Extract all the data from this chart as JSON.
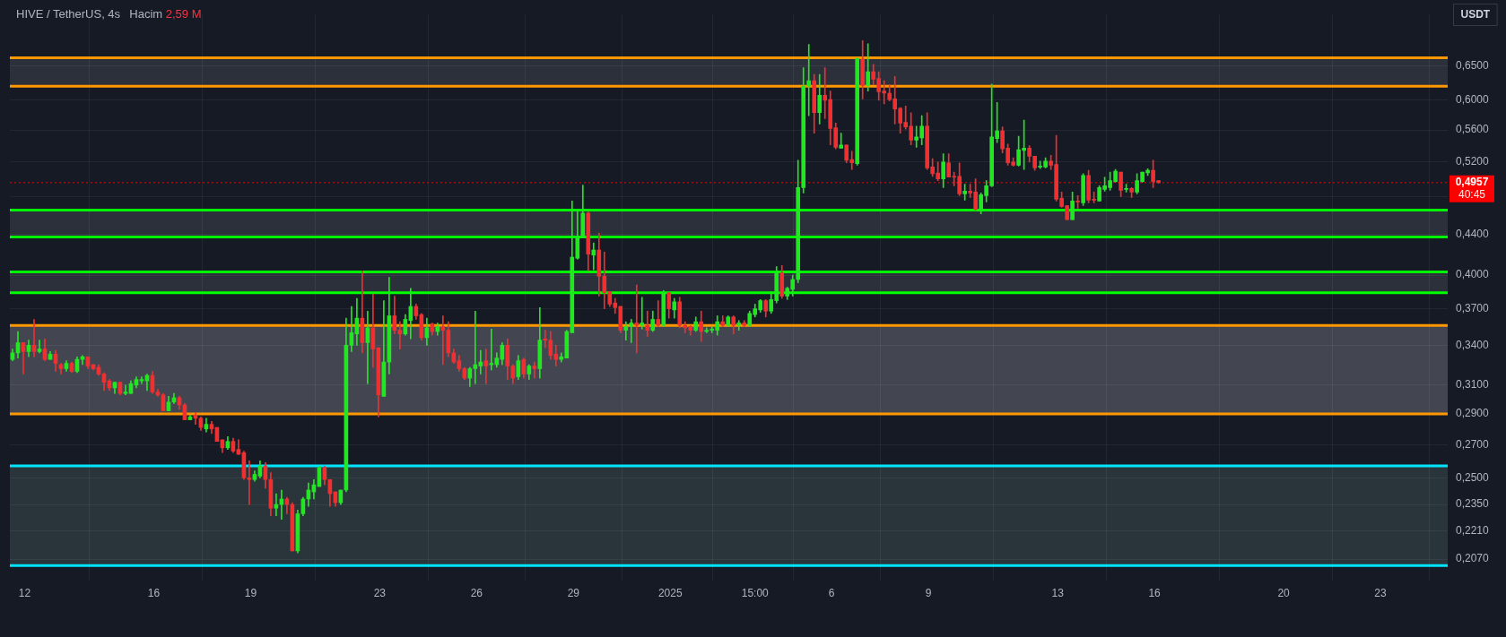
{
  "chart_data": {
    "type": "candlestick",
    "title": "HIVE / TetherUS, 4s",
    "subtitle": "Hacim 2,59 M",
    "ylabel": "USDT",
    "x": [
      "2024-12-11T15:00",
      "2024-12-11T19:00",
      "2024-12-11T23:00",
      "2024-12-12T03:00",
      "2024-12-12T07:00",
      "2024-12-12T11:00",
      "2024-12-12T15:00",
      "2024-12-12T19:00",
      "2024-12-12T23:00",
      "2024-12-13T03:00",
      "2024-12-13T07:00",
      "2024-12-13T11:00",
      "2024-12-13T15:00",
      "2024-12-13T19:00",
      "2024-12-13T23:00",
      "2024-12-14T03:00",
      "2024-12-14T07:00",
      "2024-12-14T11:00",
      "2024-12-14T15:00",
      "2024-12-14T19:00",
      "2024-12-14T23:00",
      "2024-12-15T03:00",
      "2024-12-15T07:00",
      "2024-12-15T11:00",
      "2024-12-15T15:00",
      "2024-12-15T19:00",
      "2024-12-15T23:00",
      "2024-12-16T03:00",
      "2024-12-16T07:00",
      "2024-12-16T11:00",
      "2024-12-16T15:00",
      "2024-12-16T19:00",
      "2024-12-16T23:00",
      "2024-12-17T03:00",
      "2024-12-17T07:00",
      "2024-12-17T11:00",
      "2024-12-17T15:00",
      "2024-12-17T19:00",
      "2024-12-17T23:00",
      "2024-12-18T03:00",
      "2024-12-18T07:00",
      "2024-12-18T11:00",
      "2024-12-18T15:00",
      "2024-12-18T19:00",
      "2024-12-18T23:00",
      "2024-12-19T03:00",
      "2024-12-19T07:00",
      "2024-12-19T11:00",
      "2024-12-19T15:00",
      "2024-12-19T19:00",
      "2024-12-19T23:00",
      "2024-12-20T03:00",
      "2024-12-20T07:00",
      "2024-12-20T11:00",
      "2024-12-20T15:00",
      "2024-12-20T19:00",
      "2024-12-20T23:00",
      "2024-12-21T03:00",
      "2024-12-21T07:00",
      "2024-12-21T11:00",
      "2024-12-21T15:00",
      "2024-12-21T19:00",
      "2024-12-21T23:00",
      "2024-12-22T03:00",
      "2024-12-22T07:00",
      "2024-12-22T11:00",
      "2024-12-22T15:00",
      "2024-12-22T19:00",
      "2024-12-22T23:00",
      "2024-12-23T03:00",
      "2024-12-23T07:00",
      "2024-12-23T11:00",
      "2024-12-23T15:00",
      "2024-12-23T19:00",
      "2024-12-23T23:00",
      "2024-12-24T03:00",
      "2024-12-24T07:00",
      "2024-12-24T11:00",
      "2024-12-24T15:00",
      "2024-12-24T19:00",
      "2024-12-24T23:00",
      "2024-12-25T03:00",
      "2024-12-25T07:00",
      "2024-12-25T11:00",
      "2024-12-25T15:00",
      "2024-12-25T19:00",
      "2024-12-25T23:00",
      "2024-12-26T03:00",
      "2024-12-26T07:00",
      "2024-12-26T11:00",
      "2024-12-26T15:00",
      "2024-12-26T19:00",
      "2024-12-26T23:00",
      "2024-12-27T03:00",
      "2024-12-27T07:00",
      "2024-12-27T11:00",
      "2024-12-27T15:00",
      "2024-12-27T19:00",
      "2024-12-27T23:00",
      "2024-12-28T03:00",
      "2024-12-28T07:00",
      "2024-12-28T11:00",
      "2024-12-28T15:00",
      "2024-12-28T19:00",
      "2024-12-28T23:00",
      "2024-12-29T03:00",
      "2024-12-29T07:00",
      "2024-12-29T11:00",
      "2024-12-29T15:00",
      "2024-12-29T19:00",
      "2024-12-29T23:00",
      "2024-12-30T03:00",
      "2024-12-30T07:00",
      "2024-12-30T11:00",
      "2024-12-30T15:00",
      "2024-12-30T19:00",
      "2024-12-30T23:00",
      "2024-12-31T03:00",
      "2024-12-31T07:00",
      "2024-12-31T11:00",
      "2024-12-31T15:00",
      "2024-12-31T19:00",
      "2024-12-31T23:00",
      "2025-01-01T03:00",
      "2025-01-01T07:00",
      "2025-01-01T11:00",
      "2025-01-01T15:00",
      "2025-01-01T19:00",
      "2025-01-01T23:00",
      "2025-01-02T03:00",
      "2025-01-02T07:00",
      "2025-01-02T11:00",
      "2025-01-02T15:00",
      "2025-01-02T19:00",
      "2025-01-02T23:00",
      "2025-01-03T03:00",
      "2025-01-03T07:00",
      "2025-01-03T11:00",
      "2025-01-03T15:00",
      "2025-01-03T19:00",
      "2025-01-03T23:00",
      "2025-01-04T03:00",
      "2025-01-04T07:00",
      "2025-01-04T11:00",
      "2025-01-04T15:00",
      "2025-01-04T19:00",
      "2025-01-04T23:00",
      "2025-01-05T03:00",
      "2025-01-05T07:00",
      "2025-01-05T11:00",
      "2025-01-05T15:00",
      "2025-01-05T19:00",
      "2025-01-05T23:00",
      "2025-01-06T03:00",
      "2025-01-06T07:00",
      "2025-01-06T11:00",
      "2025-01-06T15:00",
      "2025-01-06T19:00",
      "2025-01-06T23:00",
      "2025-01-07T03:00",
      "2025-01-07T07:00",
      "2025-01-07T11:00",
      "2025-01-07T15:00",
      "2025-01-07T19:00",
      "2025-01-07T23:00",
      "2025-01-08T03:00",
      "2025-01-08T07:00",
      "2025-01-08T11:00",
      "2025-01-08T15:00",
      "2025-01-08T19:00",
      "2025-01-08T23:00",
      "2025-01-09T03:00",
      "2025-01-09T07:00",
      "2025-01-09T11:00",
      "2025-01-09T15:00",
      "2025-01-09T19:00",
      "2025-01-09T23:00",
      "2025-01-10T03:00",
      "2025-01-10T07:00",
      "2025-01-10T11:00",
      "2025-01-10T15:00",
      "2025-01-10T19:00",
      "2025-01-10T23:00",
      "2025-01-11T03:00",
      "2025-01-11T07:00",
      "2025-01-11T11:00",
      "2025-01-11T15:00",
      "2025-01-11T19:00",
      "2025-01-11T23:00",
      "2025-01-12T03:00",
      "2025-01-12T07:00",
      "2025-01-12T11:00",
      "2025-01-12T15:00",
      "2025-01-12T19:00",
      "2025-01-12T23:00",
      "2025-01-13T03:00",
      "2025-01-13T07:00",
      "2025-01-13T11:00",
      "2025-01-13T15:00",
      "2025-01-13T19:00",
      "2025-01-13T23:00",
      "2025-01-14T03:00",
      "2025-01-14T07:00",
      "2025-01-14T11:00",
      "2025-01-14T15:00",
      "2025-01-14T19:00",
      "2025-01-14T23:00",
      "2025-01-15T03:00",
      "2025-01-15T07:00",
      "2025-01-15T11:00",
      "2025-01-15T15:00",
      "2025-01-15T19:00",
      "2025-01-15T23:00",
      "2025-01-16T03:00"
    ],
    "ohlc": [
      [
        0.329,
        0.337,
        0.328,
        0.334
      ],
      [
        0.334,
        0.351,
        0.33,
        0.342
      ],
      [
        0.342,
        0.342,
        0.318,
        0.335
      ],
      [
        0.335,
        0.344,
        0.331,
        0.34
      ],
      [
        0.34,
        0.361,
        0.331,
        0.335
      ],
      [
        0.335,
        0.344,
        0.334,
        0.337
      ],
      [
        0.337,
        0.345,
        0.328,
        0.329
      ],
      [
        0.329,
        0.335,
        0.329,
        0.333
      ],
      [
        0.333,
        0.336,
        0.32,
        0.326
      ],
      [
        0.325,
        0.326,
        0.318,
        0.322
      ],
      [
        0.322,
        0.328,
        0.32,
        0.326
      ],
      [
        0.326,
        0.327,
        0.319,
        0.32
      ],
      [
        0.32,
        0.331,
        0.319,
        0.329
      ],
      [
        0.329,
        0.332,
        0.325,
        0.331
      ],
      [
        0.331,
        0.331,
        0.322,
        0.324
      ],
      [
        0.325,
        0.325,
        0.321,
        0.322
      ],
      [
        0.323,
        0.325,
        0.317,
        0.318
      ],
      [
        0.318,
        0.319,
        0.306,
        0.312
      ],
      [
        0.313,
        0.314,
        0.306,
        0.308
      ],
      [
        0.308,
        0.312,
        0.304,
        0.312
      ],
      [
        0.312,
        0.312,
        0.303,
        0.304
      ],
      [
        0.304,
        0.31,
        0.303,
        0.305
      ],
      [
        0.304,
        0.313,
        0.304,
        0.311
      ],
      [
        0.31,
        0.316,
        0.308,
        0.314
      ],
      [
        0.313,
        0.316,
        0.311,
        0.314
      ],
      [
        0.313,
        0.318,
        0.306,
        0.317
      ],
      [
        0.317,
        0.32,
        0.304,
        0.305
      ],
      [
        0.305,
        0.307,
        0.302,
        0.303
      ],
      [
        0.303,
        0.304,
        0.292,
        0.292
      ],
      [
        0.292,
        0.302,
        0.292,
        0.298
      ],
      [
        0.298,
        0.304,
        0.297,
        0.301
      ],
      [
        0.301,
        0.302,
        0.293,
        0.296
      ],
      [
        0.296,
        0.297,
        0.286,
        0.286
      ],
      [
        0.286,
        0.289,
        0.286,
        0.288
      ],
      [
        0.289,
        0.291,
        0.283,
        0.287
      ],
      [
        0.287,
        0.288,
        0.279,
        0.281
      ],
      [
        0.28,
        0.287,
        0.278,
        0.283
      ],
      [
        0.283,
        0.285,
        0.277,
        0.28
      ],
      [
        0.281,
        0.281,
        0.272,
        0.272
      ],
      [
        0.273,
        0.273,
        0.265,
        0.268
      ],
      [
        0.268,
        0.275,
        0.267,
        0.272
      ],
      [
        0.272,
        0.274,
        0.265,
        0.266
      ],
      [
        0.267,
        0.273,
        0.264,
        0.264
      ],
      [
        0.265,
        0.266,
        0.249,
        0.25
      ],
      [
        0.25,
        0.26,
        0.235,
        0.249
      ],
      [
        0.249,
        0.254,
        0.248,
        0.252
      ],
      [
        0.251,
        0.26,
        0.25,
        0.257
      ],
      [
        0.257,
        0.259,
        0.244,
        0.249
      ],
      [
        0.249,
        0.253,
        0.229,
        0.233
      ],
      [
        0.233,
        0.241,
        0.229,
        0.235
      ],
      [
        0.235,
        0.243,
        0.227,
        0.238
      ],
      [
        0.238,
        0.239,
        0.23,
        0.235
      ],
      [
        0.235,
        0.236,
        0.211,
        0.211
      ],
      [
        0.211,
        0.232,
        0.21,
        0.23
      ],
      [
        0.23,
        0.239,
        0.229,
        0.238
      ],
      [
        0.238,
        0.247,
        0.234,
        0.243
      ],
      [
        0.242,
        0.249,
        0.238,
        0.246
      ],
      [
        0.245,
        0.257,
        0.245,
        0.256
      ],
      [
        0.256,
        0.257,
        0.246,
        0.249
      ],
      [
        0.249,
        0.249,
        0.234,
        0.241
      ],
      [
        0.242,
        0.242,
        0.234,
        0.236
      ],
      [
        0.236,
        0.243,
        0.235,
        0.243
      ],
      [
        0.243,
        0.362,
        0.242,
        0.34
      ],
      [
        0.34,
        0.372,
        0.335,
        0.35
      ],
      [
        0.349,
        0.379,
        0.34,
        0.362
      ],
      [
        0.362,
        0.404,
        0.334,
        0.342
      ],
      [
        0.342,
        0.368,
        0.311,
        0.354
      ],
      [
        0.354,
        0.383,
        0.323,
        0.337
      ],
      [
        0.338,
        0.338,
        0.288,
        0.303
      ],
      [
        0.302,
        0.377,
        0.302,
        0.327
      ],
      [
        0.327,
        0.398,
        0.318,
        0.364
      ],
      [
        0.364,
        0.381,
        0.349,
        0.352
      ],
      [
        0.352,
        0.359,
        0.337,
        0.349
      ],
      [
        0.349,
        0.365,
        0.348,
        0.361
      ],
      [
        0.36,
        0.388,
        0.345,
        0.372
      ],
      [
        0.372,
        0.374,
        0.361,
        0.364
      ],
      [
        0.365,
        0.366,
        0.344,
        0.346
      ],
      [
        0.346,
        0.362,
        0.34,
        0.354
      ],
      [
        0.357,
        0.358,
        0.348,
        0.351
      ],
      [
        0.351,
        0.358,
        0.348,
        0.355
      ],
      [
        0.355,
        0.364,
        0.325,
        0.352
      ],
      [
        0.352,
        0.359,
        0.331,
        0.334
      ],
      [
        0.334,
        0.337,
        0.326,
        0.327
      ],
      [
        0.328,
        0.332,
        0.32,
        0.322
      ],
      [
        0.322,
        0.323,
        0.314,
        0.315
      ],
      [
        0.315,
        0.323,
        0.309,
        0.322
      ],
      [
        0.322,
        0.368,
        0.311,
        0.325
      ],
      [
        0.324,
        0.336,
        0.318,
        0.327
      ],
      [
        0.328,
        0.337,
        0.311,
        0.324
      ],
      [
        0.325,
        0.353,
        0.321,
        0.326
      ],
      [
        0.325,
        0.334,
        0.323,
        0.33
      ],
      [
        0.329,
        0.342,
        0.325,
        0.34
      ],
      [
        0.34,
        0.345,
        0.314,
        0.324
      ],
      [
        0.324,
        0.325,
        0.311,
        0.315
      ],
      [
        0.316,
        0.332,
        0.314,
        0.328
      ],
      [
        0.329,
        0.33,
        0.315,
        0.318
      ],
      [
        0.318,
        0.325,
        0.314,
        0.324
      ],
      [
        0.324,
        0.327,
        0.315,
        0.322
      ],
      [
        0.322,
        0.371,
        0.315,
        0.344
      ],
      [
        0.345,
        0.352,
        0.338,
        0.344
      ],
      [
        0.344,
        0.351,
        0.329,
        0.332
      ],
      [
        0.333,
        0.34,
        0.324,
        0.329
      ],
      [
        0.329,
        0.334,
        0.327,
        0.331
      ],
      [
        0.33,
        0.352,
        0.33,
        0.351
      ],
      [
        0.35,
        0.475,
        0.35,
        0.417
      ],
      [
        0.416,
        0.464,
        0.415,
        0.437
      ],
      [
        0.436,
        0.493,
        0.436,
        0.462
      ],
      [
        0.462,
        0.463,
        0.404,
        0.42
      ],
      [
        0.419,
        0.431,
        0.405,
        0.424
      ],
      [
        0.424,
        0.441,
        0.381,
        0.399
      ],
      [
        0.399,
        0.422,
        0.37,
        0.384
      ],
      [
        0.385,
        0.385,
        0.372,
        0.374
      ],
      [
        0.375,
        0.379,
        0.366,
        0.371
      ],
      [
        0.372,
        0.372,
        0.35,
        0.352
      ],
      [
        0.352,
        0.359,
        0.344,
        0.355
      ],
      [
        0.355,
        0.361,
        0.342,
        0.358
      ],
      [
        0.358,
        0.391,
        0.334,
        0.356
      ],
      [
        0.356,
        0.38,
        0.353,
        0.358
      ],
      [
        0.356,
        0.368,
        0.347,
        0.352
      ],
      [
        0.352,
        0.368,
        0.351,
        0.361
      ],
      [
        0.361,
        0.377,
        0.355,
        0.356
      ],
      [
        0.356,
        0.386,
        0.355,
        0.384
      ],
      [
        0.384,
        0.384,
        0.362,
        0.37
      ],
      [
        0.369,
        0.379,
        0.362,
        0.376
      ],
      [
        0.376,
        0.38,
        0.354,
        0.356
      ],
      [
        0.356,
        0.359,
        0.35,
        0.354
      ],
      [
        0.355,
        0.356,
        0.348,
        0.352
      ],
      [
        0.352,
        0.363,
        0.351,
        0.359
      ],
      [
        0.359,
        0.368,
        0.343,
        0.351
      ],
      [
        0.351,
        0.354,
        0.35,
        0.352
      ],
      [
        0.352,
        0.355,
        0.35,
        0.353
      ],
      [
        0.352,
        0.364,
        0.348,
        0.359
      ],
      [
        0.359,
        0.364,
        0.355,
        0.356
      ],
      [
        0.356,
        0.364,
        0.355,
        0.363
      ],
      [
        0.363,
        0.364,
        0.349,
        0.356
      ],
      [
        0.356,
        0.36,
        0.352,
        0.358
      ],
      [
        0.358,
        0.36,
        0.355,
        0.356
      ],
      [
        0.356,
        0.368,
        0.355,
        0.366
      ],
      [
        0.365,
        0.374,
        0.363,
        0.37
      ],
      [
        0.369,
        0.378,
        0.367,
        0.377
      ],
      [
        0.377,
        0.378,
        0.363,
        0.368
      ],
      [
        0.368,
        0.385,
        0.366,
        0.378
      ],
      [
        0.377,
        0.408,
        0.375,
        0.402
      ],
      [
        0.402,
        0.409,
        0.379,
        0.381
      ],
      [
        0.381,
        0.389,
        0.378,
        0.388
      ],
      [
        0.387,
        0.4,
        0.381,
        0.396
      ],
      [
        0.396,
        0.522,
        0.393,
        0.49
      ],
      [
        0.49,
        0.647,
        0.484,
        0.62
      ],
      [
        0.62,
        0.683,
        0.579,
        0.628
      ],
      [
        0.628,
        0.637,
        0.556,
        0.583
      ],
      [
        0.583,
        0.637,
        0.568,
        0.607
      ],
      [
        0.607,
        0.647,
        0.575,
        0.6
      ],
      [
        0.601,
        0.613,
        0.541,
        0.562
      ],
      [
        0.563,
        0.569,
        0.536,
        0.538
      ],
      [
        0.537,
        0.556,
        0.537,
        0.541
      ],
      [
        0.541,
        0.541,
        0.519,
        0.522
      ],
      [
        0.523,
        0.533,
        0.511,
        0.519
      ],
      [
        0.518,
        0.662,
        0.516,
        0.661
      ],
      [
        0.66,
        0.689,
        0.602,
        0.621
      ],
      [
        0.621,
        0.684,
        0.613,
        0.641
      ],
      [
        0.641,
        0.652,
        0.622,
        0.63
      ],
      [
        0.631,
        0.641,
        0.6,
        0.612
      ],
      [
        0.613,
        0.628,
        0.595,
        0.61
      ],
      [
        0.61,
        0.622,
        0.599,
        0.601
      ],
      [
        0.602,
        0.634,
        0.568,
        0.588
      ],
      [
        0.589,
        0.59,
        0.556,
        0.569
      ],
      [
        0.57,
        0.592,
        0.561,
        0.564
      ],
      [
        0.565,
        0.583,
        0.541,
        0.547
      ],
      [
        0.547,
        0.565,
        0.538,
        0.551
      ],
      [
        0.55,
        0.579,
        0.541,
        0.565
      ],
      [
        0.565,
        0.583,
        0.511,
        0.513
      ],
      [
        0.514,
        0.524,
        0.503,
        0.506
      ],
      [
        0.507,
        0.52,
        0.498,
        0.5
      ],
      [
        0.5,
        0.53,
        0.49,
        0.52
      ],
      [
        0.519,
        0.53,
        0.502,
        0.502
      ],
      [
        0.503,
        0.508,
        0.492,
        0.502
      ],
      [
        0.503,
        0.519,
        0.481,
        0.483
      ],
      [
        0.483,
        0.494,
        0.476,
        0.486
      ],
      [
        0.486,
        0.494,
        0.479,
        0.484
      ],
      [
        0.485,
        0.5,
        0.465,
        0.466
      ],
      [
        0.466,
        0.484,
        0.461,
        0.482
      ],
      [
        0.481,
        0.498,
        0.474,
        0.492
      ],
      [
        0.492,
        0.623,
        0.491,
        0.551
      ],
      [
        0.549,
        0.597,
        0.544,
        0.559
      ],
      [
        0.559,
        0.564,
        0.531,
        0.536
      ],
      [
        0.537,
        0.542,
        0.516,
        0.519
      ],
      [
        0.52,
        0.525,
        0.515,
        0.516
      ],
      [
        0.516,
        0.552,
        0.515,
        0.535
      ],
      [
        0.534,
        0.573,
        0.511,
        0.537
      ],
      [
        0.537,
        0.54,
        0.52,
        0.527
      ],
      [
        0.527,
        0.527,
        0.51,
        0.513
      ],
      [
        0.514,
        0.521,
        0.512,
        0.515
      ],
      [
        0.514,
        0.525,
        0.513,
        0.521
      ],
      [
        0.521,
        0.528,
        0.511,
        0.516
      ],
      [
        0.517,
        0.553,
        0.475,
        0.477
      ],
      [
        0.478,
        0.485,
        0.468,
        0.469
      ],
      [
        0.47,
        0.47,
        0.455,
        0.455
      ],
      [
        0.455,
        0.485,
        0.455,
        0.475
      ],
      [
        0.475,
        0.481,
        0.467,
        0.474
      ],
      [
        0.473,
        0.506,
        0.47,
        0.504
      ],
      [
        0.504,
        0.51,
        0.473,
        0.476
      ],
      [
        0.477,
        0.485,
        0.473,
        0.476
      ],
      [
        0.475,
        0.492,
        0.475,
        0.49
      ],
      [
        0.488,
        0.502,
        0.486,
        0.492
      ],
      [
        0.49,
        0.508,
        0.487,
        0.498
      ],
      [
        0.497,
        0.511,
        0.496,
        0.509
      ],
      [
        0.508,
        0.508,
        0.48,
        0.487
      ],
      [
        0.488,
        0.494,
        0.485,
        0.489
      ],
      [
        0.489,
        0.49,
        0.479,
        0.485
      ],
      [
        0.485,
        0.506,
        0.483,
        0.498
      ],
      [
        0.497,
        0.508,
        0.496,
        0.508
      ],
      [
        0.507,
        0.512,
        0.504,
        0.51
      ],
      [
        0.51,
        0.522,
        0.49,
        0.497
      ],
      [
        0.498,
        0.498,
        0.495,
        0.4957
      ]
    ],
    "colors": [
      "#22e622",
      "#22e622",
      "#f03030",
      "#22e622",
      "#f03030",
      "#22e622",
      "#f03030",
      "#22e622",
      "#f03030",
      "#f03030",
      "#22e622",
      "#f03030",
      "#22e622",
      "#22e622",
      "#f03030",
      "#f03030",
      "#f03030",
      "#f03030",
      "#f03030",
      "#22e622",
      "#f03030",
      "#22e622",
      "#22e622",
      "#22e622",
      "#22e622",
      "#22e622",
      "#f03030",
      "#f03030",
      "#f03030",
      "#22e622",
      "#22e622",
      "#f03030",
      "#f03030",
      "#22e622",
      "#f03030",
      "#f03030",
      "#22e622",
      "#f03030",
      "#f03030",
      "#f03030",
      "#22e622",
      "#f03030",
      "#f03030",
      "#f03030",
      "#f03030",
      "#22e622",
      "#22e622",
      "#f03030",
      "#f03030",
      "#22e622",
      "#22e622",
      "#f03030",
      "#f03030",
      "#22e622",
      "#22e622",
      "#22e622",
      "#22e622",
      "#22e622",
      "#f03030",
      "#f03030",
      "#f03030",
      "#22e622",
      "#22e622",
      "#22e622",
      "#22e622",
      "#f03030",
      "#22e622",
      "#f03030",
      "#f03030",
      "#22e622",
      "#22e622",
      "#f03030",
      "#f03030",
      "#22e622",
      "#22e622",
      "#f03030",
      "#f03030",
      "#22e622",
      "#f03030",
      "#22e622",
      "#f03030",
      "#f03030",
      "#f03030",
      "#f03030",
      "#f03030",
      "#22e622",
      "#22e622",
      "#22e622",
      "#f03030",
      "#22e622",
      "#22e622",
      "#22e622",
      "#f03030",
      "#f03030",
      "#22e622",
      "#f03030",
      "#22e622",
      "#f03030",
      "#22e622",
      "#f03030",
      "#f03030",
      "#f03030",
      "#22e622",
      "#22e622",
      "#22e622",
      "#22e622",
      "#22e622",
      "#f03030",
      "#22e622",
      "#f03030",
      "#f03030",
      "#f03030",
      "#f03030",
      "#f03030",
      "#22e622",
      "#22e622",
      "#f03030",
      "#22e622",
      "#f03030",
      "#22e622",
      "#f03030",
      "#22e622",
      "#f03030",
      "#22e622",
      "#f03030",
      "#f03030",
      "#f03030",
      "#22e622",
      "#f03030",
      "#22e622",
      "#22e622",
      "#22e622",
      "#f03030",
      "#22e622",
      "#f03030",
      "#22e622",
      "#f03030",
      "#22e622",
      "#22e622",
      "#22e622",
      "#f03030",
      "#22e622",
      "#22e622",
      "#f03030",
      "#22e622",
      "#22e622",
      "#22e622",
      "#22e622",
      "#22e622",
      "#f03030",
      "#22e622",
      "#f03030",
      "#f03030",
      "#f03030",
      "#22e622",
      "#f03030",
      "#f03030",
      "#22e622",
      "#f03030",
      "#22e622",
      "#f03030",
      "#f03030",
      "#f03030",
      "#f03030",
      "#f03030",
      "#f03030",
      "#f03030",
      "#f03030",
      "#22e622",
      "#22e622",
      "#f03030",
      "#f03030",
      "#f03030",
      "#22e622",
      "#f03030",
      "#f03030",
      "#f03030",
      "#22e622",
      "#f03030",
      "#f03030",
      "#22e622",
      "#22e622",
      "#22e622",
      "#22e622",
      "#f03030",
      "#f03030",
      "#f03030",
      "#22e622",
      "#22e622",
      "#f03030",
      "#f03030",
      "#22e622",
      "#22e622",
      "#f03030",
      "#f03030",
      "#f03030",
      "#f03030",
      "#22e622",
      "#f03030",
      "#22e622",
      "#f03030",
      "#f03030",
      "#22e622",
      "#22e622",
      "#22e622",
      "#22e622",
      "#f03030",
      "#22e622",
      "#f03030",
      "#22e622",
      "#22e622",
      "#22e622",
      "#f03030",
      "#f03030"
    ],
    "xlim": [
      "2024-12-11T13:00",
      "2025-01-25T02:00"
    ],
    "xticks": [
      {
        "value": "2024-12-12",
        "label": "12"
      },
      {
        "value": "2024-12-16",
        "label": "16"
      },
      {
        "value": "2024-12-19",
        "label": "19"
      },
      {
        "value": "2024-12-23",
        "label": "23"
      },
      {
        "value": "2024-12-26",
        "label": "26"
      },
      {
        "value": "2024-12-29",
        "label": "29"
      },
      {
        "value": "2025-01-01",
        "label": "2025"
      },
      {
        "value": "2025-01-03T15:00",
        "label": "15:00"
      },
      {
        "value": "2025-01-06",
        "label": "6"
      },
      {
        "value": "2025-01-09",
        "label": "9"
      },
      {
        "value": "2025-01-13",
        "label": "13"
      },
      {
        "value": "2025-01-16",
        "label": "16"
      },
      {
        "value": "2025-01-20",
        "label": "20"
      },
      {
        "value": "2025-01-23",
        "label": "23"
      }
    ],
    "ylim": [
      0.197,
      0.732
    ],
    "yticks": [
      {
        "value": 0.207,
        "label": "0,2070"
      },
      {
        "value": 0.221,
        "label": "0,2210"
      },
      {
        "value": 0.235,
        "label": "0,2350"
      },
      {
        "value": 0.25,
        "label": "0,2500"
      },
      {
        "value": 0.27,
        "label": "0,2700"
      },
      {
        "value": 0.29,
        "label": "0,2900"
      },
      {
        "value": 0.31,
        "label": "0,3100"
      },
      {
        "value": 0.34,
        "label": "0,3400"
      },
      {
        "value": 0.37,
        "label": "0,3700"
      },
      {
        "value": 0.4,
        "label": "0,4000"
      },
      {
        "value": 0.44,
        "label": "0,4400"
      },
      {
        "value": 0.48,
        "label": null
      },
      {
        "value": 0.52,
        "label": "0,5200"
      },
      {
        "value": 0.56,
        "label": "0,5600"
      },
      {
        "value": 0.6,
        "label": "0,6000"
      },
      {
        "value": 0.65,
        "label": "0,6500"
      }
    ],
    "log": true,
    "grid": true,
    "bands": [
      {
        "axis": "y",
        "from": 0.29,
        "to": 0.356,
        "color": "#434651"
      },
      {
        "axis": "y",
        "from": 0.204,
        "to": 0.257,
        "color": "#29353a"
      },
      {
        "axis": "y",
        "from": 0.437,
        "to": 0.465,
        "color": "#2c303b"
      },
      {
        "axis": "y",
        "from": 0.384,
        "to": 0.403,
        "color": "#2c303b"
      },
      {
        "axis": "y",
        "from": 0.62,
        "to": 0.662,
        "color": "#2c303b"
      }
    ],
    "ref_lines": [
      {
        "axis": "y",
        "value": 0.356,
        "color": "#ff9800"
      },
      {
        "axis": "y",
        "value": 0.29,
        "color": "#ff9800"
      },
      {
        "axis": "y",
        "value": 0.257,
        "color": "#00e5ff"
      },
      {
        "axis": "y",
        "value": 0.204,
        "color": "#00e5ff"
      },
      {
        "axis": "y",
        "value": 0.465,
        "color": "#00ff00"
      },
      {
        "axis": "y",
        "value": 0.437,
        "color": "#00ff00"
      },
      {
        "axis": "y",
        "value": 0.403,
        "color": "#00ff00"
      },
      {
        "axis": "y",
        "value": 0.384,
        "color": "#00ff00"
      },
      {
        "axis": "y",
        "value": 0.662,
        "color": "#ff9800"
      },
      {
        "axis": "y",
        "value": 0.62,
        "color": "#ff9800"
      },
      {
        "axis": "y",
        "value": 0.4957,
        "label": "0,4957",
        "color": "#ff0000",
        "line_style": "dotted"
      }
    ],
    "annotations": [
      "40:45"
    ]
  }
}
